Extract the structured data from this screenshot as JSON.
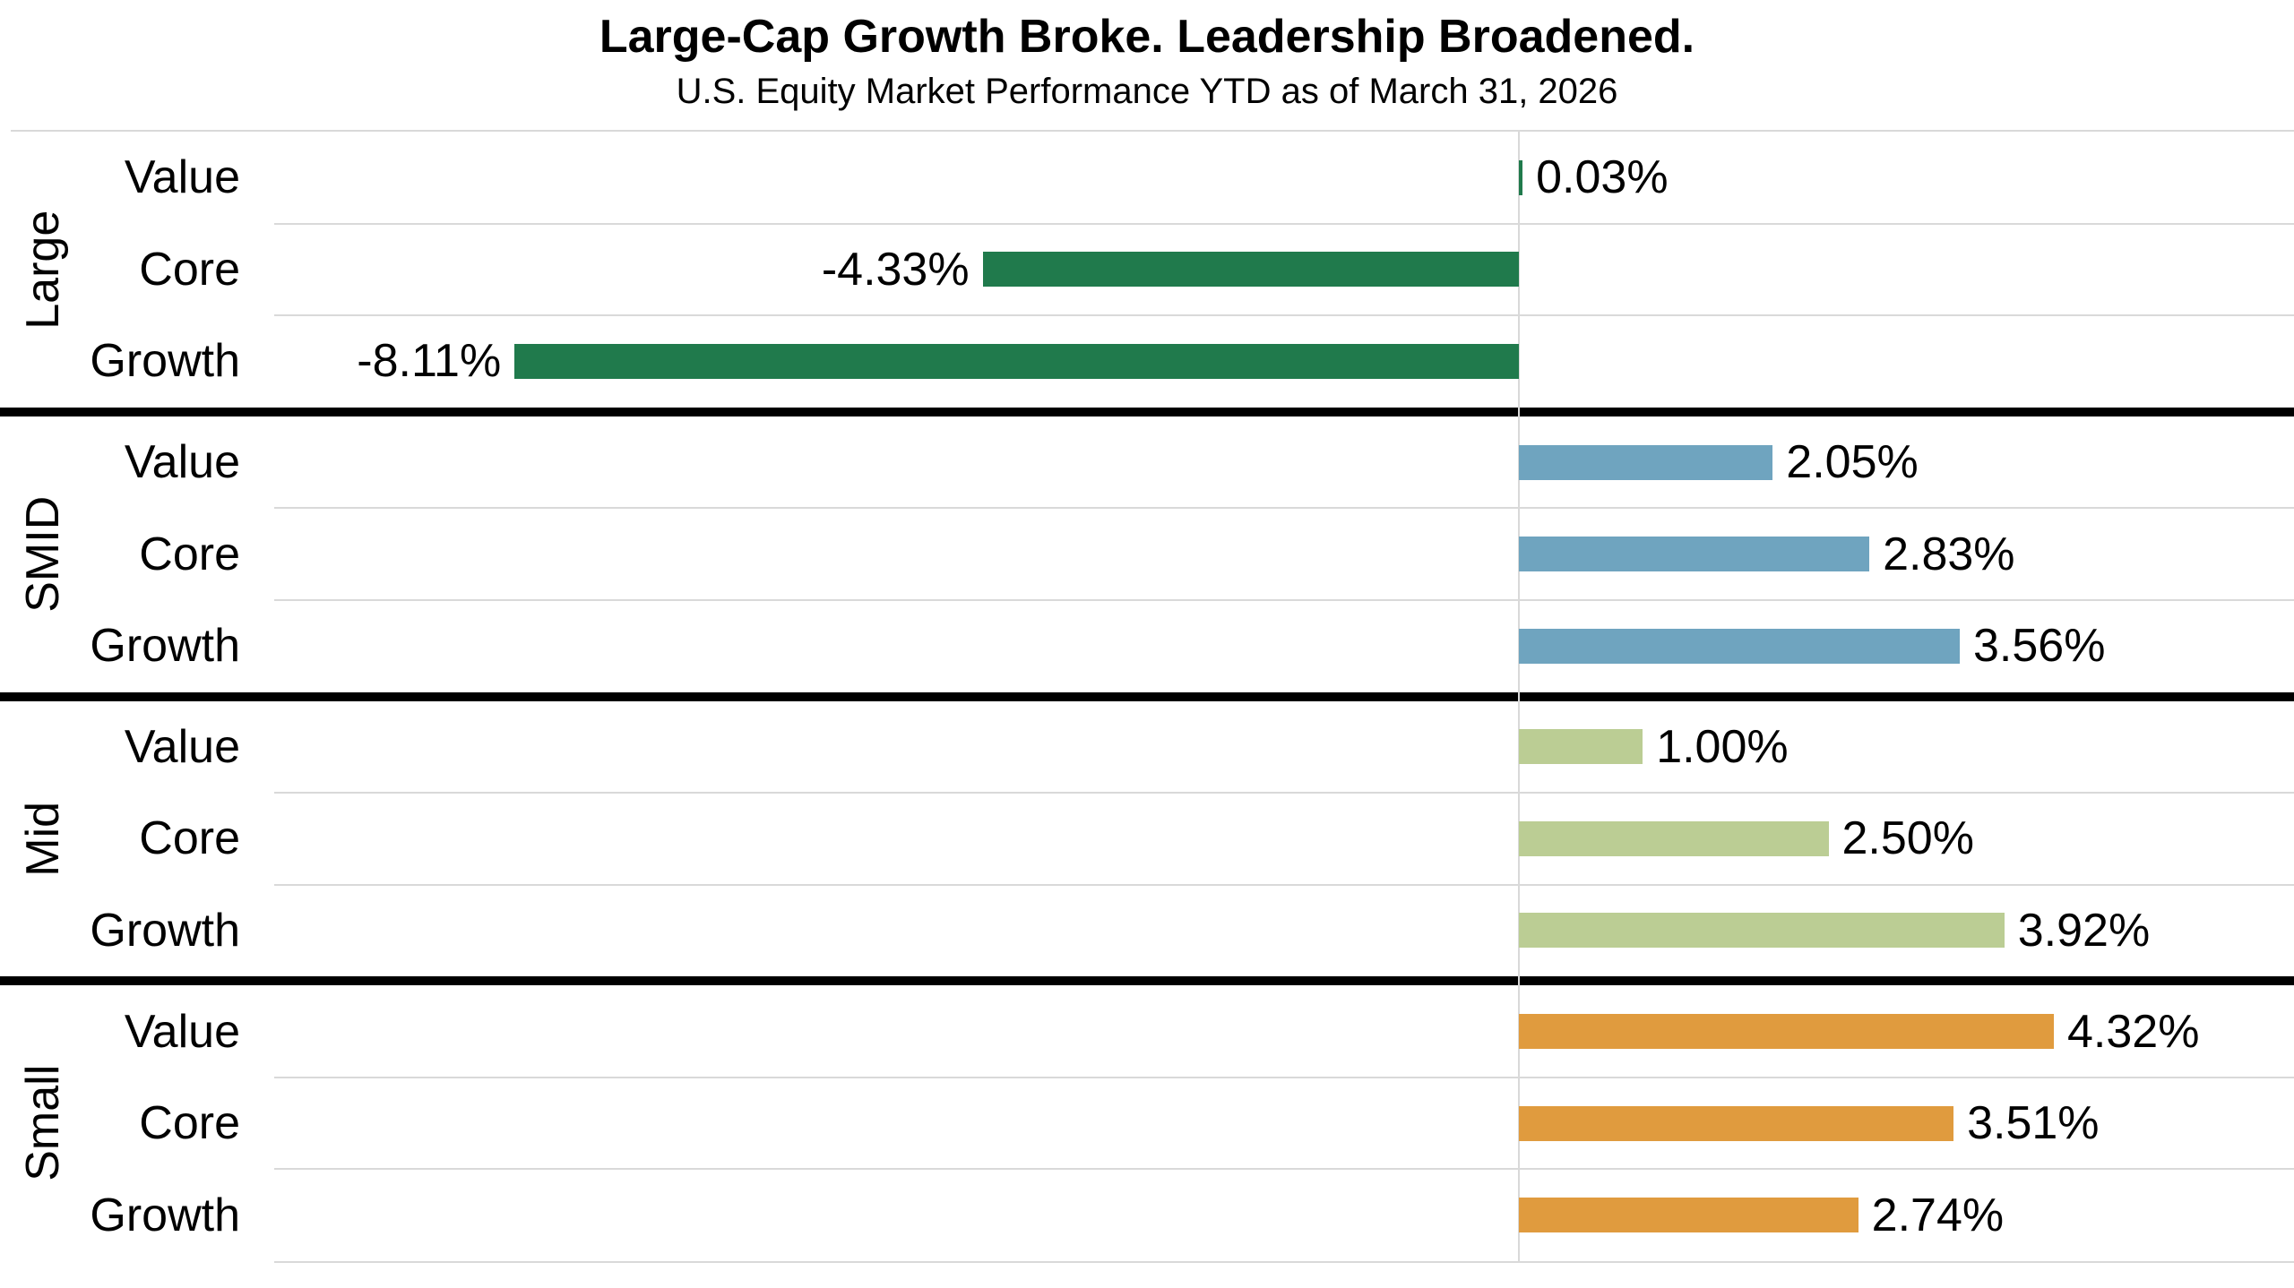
{
  "chart_data": {
    "type": "bar",
    "orientation": "horizontal",
    "title": "Large-Cap Growth Broke. Leadership Broadened.",
    "subtitle": "U.S. Equity Market Performance YTD as of March 31, 2026",
    "value_unit": "%",
    "xlim": [
      -10.0,
      6.25
    ],
    "axis_tick_labels_visible": false,
    "legend": "none",
    "gridlines": "thin gray row separators and zero axis line; thick black dividers between size groups",
    "categories_per_group": [
      "Value",
      "Core",
      "Growth"
    ],
    "groups": [
      {
        "name": "Large",
        "color": "#207A4C",
        "rows": [
          {
            "category": "Value",
            "value": 0.03,
            "label": "0.03%"
          },
          {
            "category": "Core",
            "value": -4.33,
            "label": "-4.33%"
          },
          {
            "category": "Growth",
            "value": -8.11,
            "label": "-8.11%"
          }
        ]
      },
      {
        "name": "SMID",
        "color": "#6FA4BF",
        "rows": [
          {
            "category": "Value",
            "value": 2.05,
            "label": "2.05%"
          },
          {
            "category": "Core",
            "value": 2.83,
            "label": "2.83%"
          },
          {
            "category": "Growth",
            "value": 3.56,
            "label": "3.56%"
          }
        ]
      },
      {
        "name": "Mid",
        "color": "#BBCD94",
        "rows": [
          {
            "category": "Value",
            "value": 1.0,
            "label": "1.00%"
          },
          {
            "category": "Core",
            "value": 2.5,
            "label": "2.50%"
          },
          {
            "category": "Growth",
            "value": 3.92,
            "label": "3.92%"
          }
        ]
      },
      {
        "name": "Small",
        "color": "#E09B3E",
        "rows": [
          {
            "category": "Value",
            "value": 4.32,
            "label": "4.32%"
          },
          {
            "category": "Core",
            "value": 3.51,
            "label": "3.51%"
          },
          {
            "category": "Growth",
            "value": 2.74,
            "label": "2.74%"
          }
        ]
      }
    ],
    "colors": {
      "grid": "#D9D9D9",
      "group_divider": "#000000",
      "text": "#000000",
      "background": "#FFFFFF"
    }
  }
}
